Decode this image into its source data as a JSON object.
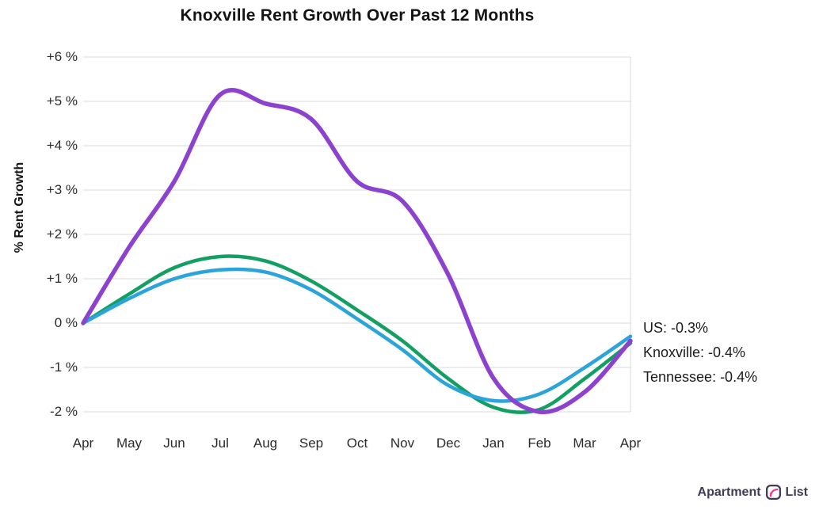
{
  "title": "Knoxville Rent Growth Over Past 12 Months",
  "y_axis_label": "% Rent Growth",
  "annotations": {
    "us": "US: -0.3%",
    "knoxville": "Knoxville: -0.4%",
    "tennessee": "Tennessee: -0.4%"
  },
  "footer": {
    "brand_first": "Apartment",
    "brand_second": "List"
  },
  "chart_data": {
    "type": "line",
    "title": "Knoxville Rent Growth Over Past 12 Months",
    "xlabel": "",
    "ylabel": "% Rent Growth",
    "x": [
      "Apr",
      "May",
      "Jun",
      "Jul",
      "Aug",
      "Sep",
      "Oct",
      "Nov",
      "Dec",
      "Jan",
      "Feb",
      "Mar",
      "Apr"
    ],
    "y_ticks": [
      6,
      5,
      4,
      3,
      2,
      1,
      0,
      -1,
      -2
    ],
    "y_tick_labels": [
      "+6 %",
      "+5 %",
      "+4 %",
      "+3 %",
      "+2 %",
      "+1 %",
      "0 %",
      "-1 %",
      "-2 %"
    ],
    "ylim": [
      -2.5,
      6.5
    ],
    "grid": "horizontal",
    "grid_color": "#d9d9d9",
    "legend_position": "right-edge-annotations",
    "series": [
      {
        "name": "Tennessee",
        "color": "#12a062",
        "stroke_width": 4.5,
        "end_label": "Tennessee: -0.4%",
        "values": [
          0,
          0.65,
          1.25,
          1.5,
          1.4,
          0.95,
          0.3,
          -0.4,
          -1.25,
          -1.9,
          -1.95,
          -1.25,
          -0.45
        ]
      },
      {
        "name": "US",
        "color": "#2ba4dc",
        "stroke_width": 4.5,
        "end_label": "US: -0.3%",
        "values": [
          0,
          0.55,
          1.0,
          1.2,
          1.15,
          0.75,
          0.1,
          -0.6,
          -1.4,
          -1.75,
          -1.6,
          -1.0,
          -0.3
        ]
      },
      {
        "name": "Knoxville",
        "color": "#8c41cf",
        "stroke_width": 5.5,
        "end_label": "Knoxville: -0.4%",
        "values": [
          0,
          1.7,
          3.2,
          5.15,
          4.95,
          4.6,
          3.2,
          2.75,
          1.1,
          -1.25,
          -2.0,
          -1.55,
          -0.4
        ]
      }
    ]
  }
}
